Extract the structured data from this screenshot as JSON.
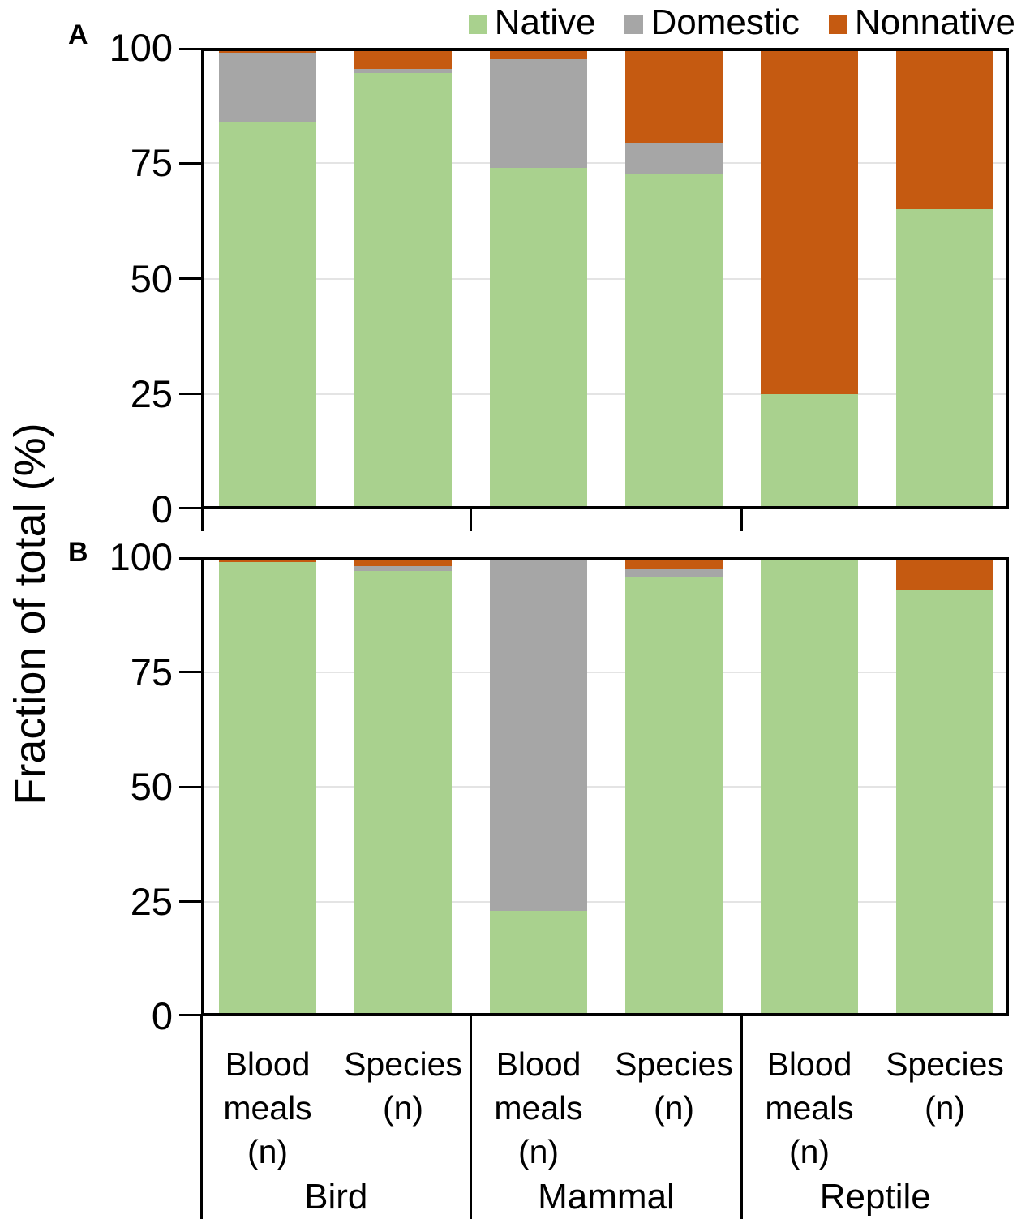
{
  "figure": {
    "ylabel": "Fraction of total (%)",
    "panel_a_label": "A",
    "panel_b_label": "B"
  },
  "legend": {
    "items": [
      {
        "label": "Native",
        "color": "#a9d18e"
      },
      {
        "label": "Domestic",
        "color": "#a6a6a6"
      },
      {
        "label": "Nonnative",
        "color": "#c55a11"
      }
    ]
  },
  "x_axis": {
    "column_labels": [
      "Blood\nmeals\n(n)",
      "Species\n(n)",
      "Blood\nmeals\n(n)",
      "Species\n(n)",
      "Blood\nmeals\n(n)",
      "Species\n(n)"
    ],
    "group_labels": [
      "Bird",
      "Mammal",
      "Reptile"
    ]
  },
  "chart_data": [
    {
      "type": "bar",
      "stacked": true,
      "panel": "A",
      "ylabel": "Fraction of total (%)",
      "ylim": [
        0,
        100
      ],
      "yticks": [
        0,
        25,
        50,
        75,
        100
      ],
      "grid": "horizontal gridlines at 25, 50, 75",
      "legend_position": "top-right (shared between panels)",
      "groups": [
        "Bird",
        "Bird",
        "Mammal",
        "Mammal",
        "Reptile",
        "Reptile"
      ],
      "categories": [
        "Bird Blood meals (n)",
        "Bird Species (n)",
        "Mammal Blood meals (n)",
        "Mammal Species (n)",
        "Reptile Blood meals (n)",
        "Reptile Species (n)"
      ],
      "series": [
        {
          "name": "Native",
          "color": "#a9d18e",
          "values": [
            84,
            94.5,
            74,
            72.5,
            25,
            65
          ]
        },
        {
          "name": "Domestic",
          "color": "#a6a6a6",
          "values": [
            15,
            1,
            23.5,
            7,
            0,
            0
          ]
        },
        {
          "name": "Nonnative",
          "color": "#c55a11",
          "values": [
            1,
            4.5,
            2.5,
            20.5,
            75,
            35
          ]
        }
      ]
    },
    {
      "type": "bar",
      "stacked": true,
      "panel": "B",
      "ylabel": "Fraction of total (%)",
      "ylim": [
        0,
        100
      ],
      "yticks": [
        0,
        25,
        50,
        75,
        100
      ],
      "grid": "horizontal gridlines at 25, 50, 75",
      "legend_position": "top-right (shared between panels)",
      "groups": [
        "Bird",
        "Bird",
        "Mammal",
        "Mammal",
        "Reptile",
        "Reptile"
      ],
      "categories": [
        "Bird Blood meals (n)",
        "Bird Species (n)",
        "Mammal Blood meals (n)",
        "Mammal Species (n)",
        "Reptile Blood meals (n)",
        "Reptile Species (n)"
      ],
      "series": [
        {
          "name": "Native",
          "color": "#a9d18e",
          "values": [
            99,
            97,
            23,
            95.5,
            100,
            93
          ]
        },
        {
          "name": "Domestic",
          "color": "#a6a6a6",
          "values": [
            0,
            1,
            77,
            2,
            0,
            0
          ]
        },
        {
          "name": "Nonnative",
          "color": "#c55a11",
          "values": [
            1,
            2,
            0,
            2.5,
            0,
            7
          ]
        }
      ]
    }
  ]
}
